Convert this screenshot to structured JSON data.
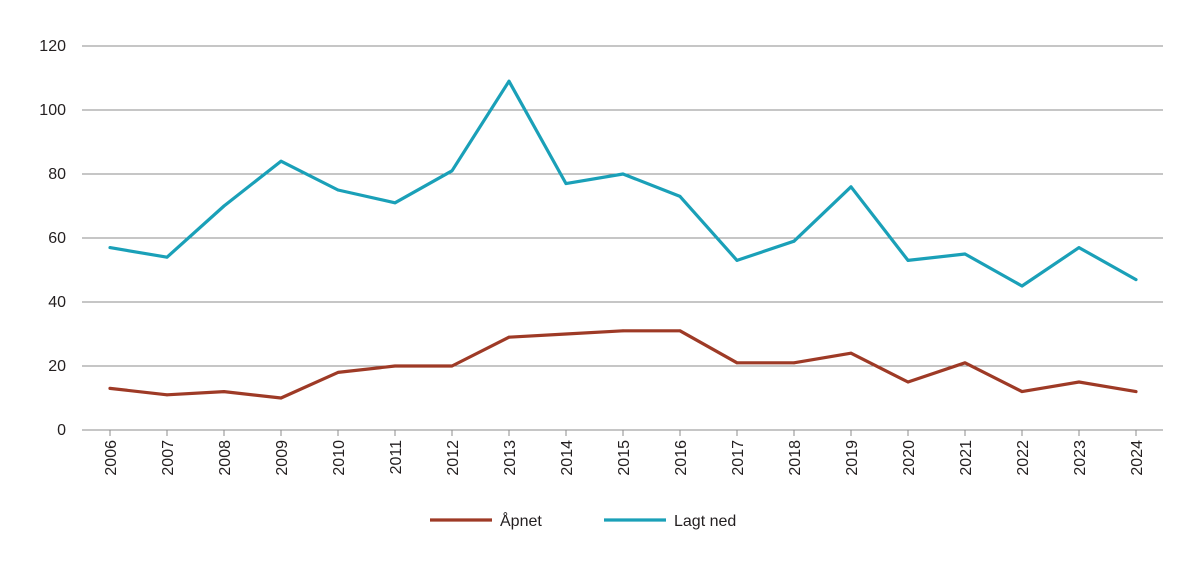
{
  "chart_data": {
    "type": "line",
    "title": "",
    "xlabel": "",
    "ylabel": "",
    "x": [
      "2006",
      "2007",
      "2008",
      "2009",
      "2010",
      "2011",
      "2012",
      "2013",
      "2014",
      "2015",
      "2016",
      "2017",
      "2018",
      "2019",
      "2020",
      "2021",
      "2022",
      "2023",
      "2024"
    ],
    "ylim": [
      0,
      120
    ],
    "yticks": [
      0,
      20,
      40,
      60,
      80,
      100,
      120
    ],
    "grid": true,
    "legend": "bottom-center",
    "series": [
      {
        "name": "Åpnet",
        "color": "#9e3a26",
        "values": [
          13,
          11,
          12,
          10,
          18,
          20,
          20,
          29,
          30,
          31,
          31,
          21,
          21,
          24,
          15,
          21,
          12,
          15,
          12
        ]
      },
      {
        "name": "Lagt ned",
        "color": "#1aa0b8",
        "values": [
          57,
          54,
          70,
          84,
          75,
          71,
          81,
          109,
          77,
          80,
          73,
          53,
          59,
          76,
          53,
          55,
          45,
          57,
          47
        ]
      }
    ]
  }
}
